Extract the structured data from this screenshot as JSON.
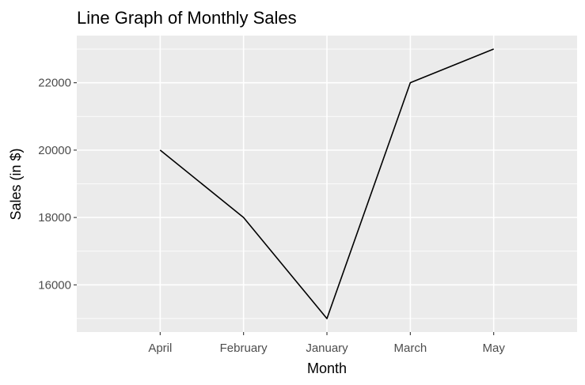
{
  "chart_data": {
    "type": "line",
    "title": "Line Graph of Monthly Sales",
    "xlabel": "Month",
    "ylabel": "Sales (in $)",
    "categories": [
      "April",
      "February",
      "January",
      "March",
      "May"
    ],
    "series": [
      {
        "values": [
          20000,
          18000,
          15000,
          22000,
          23000
        ]
      }
    ],
    "ylim": [
      14600,
      23400
    ],
    "yticks": [
      16000,
      18000,
      20000,
      22000
    ],
    "yminor": [
      15000,
      17000,
      19000,
      21000,
      23000
    ],
    "grid": true,
    "legend": "none",
    "colors": {
      "panel": "#ebebeb",
      "grid": "#ffffff",
      "line": "#000000",
      "tick_text": "#4d4d4d"
    }
  }
}
